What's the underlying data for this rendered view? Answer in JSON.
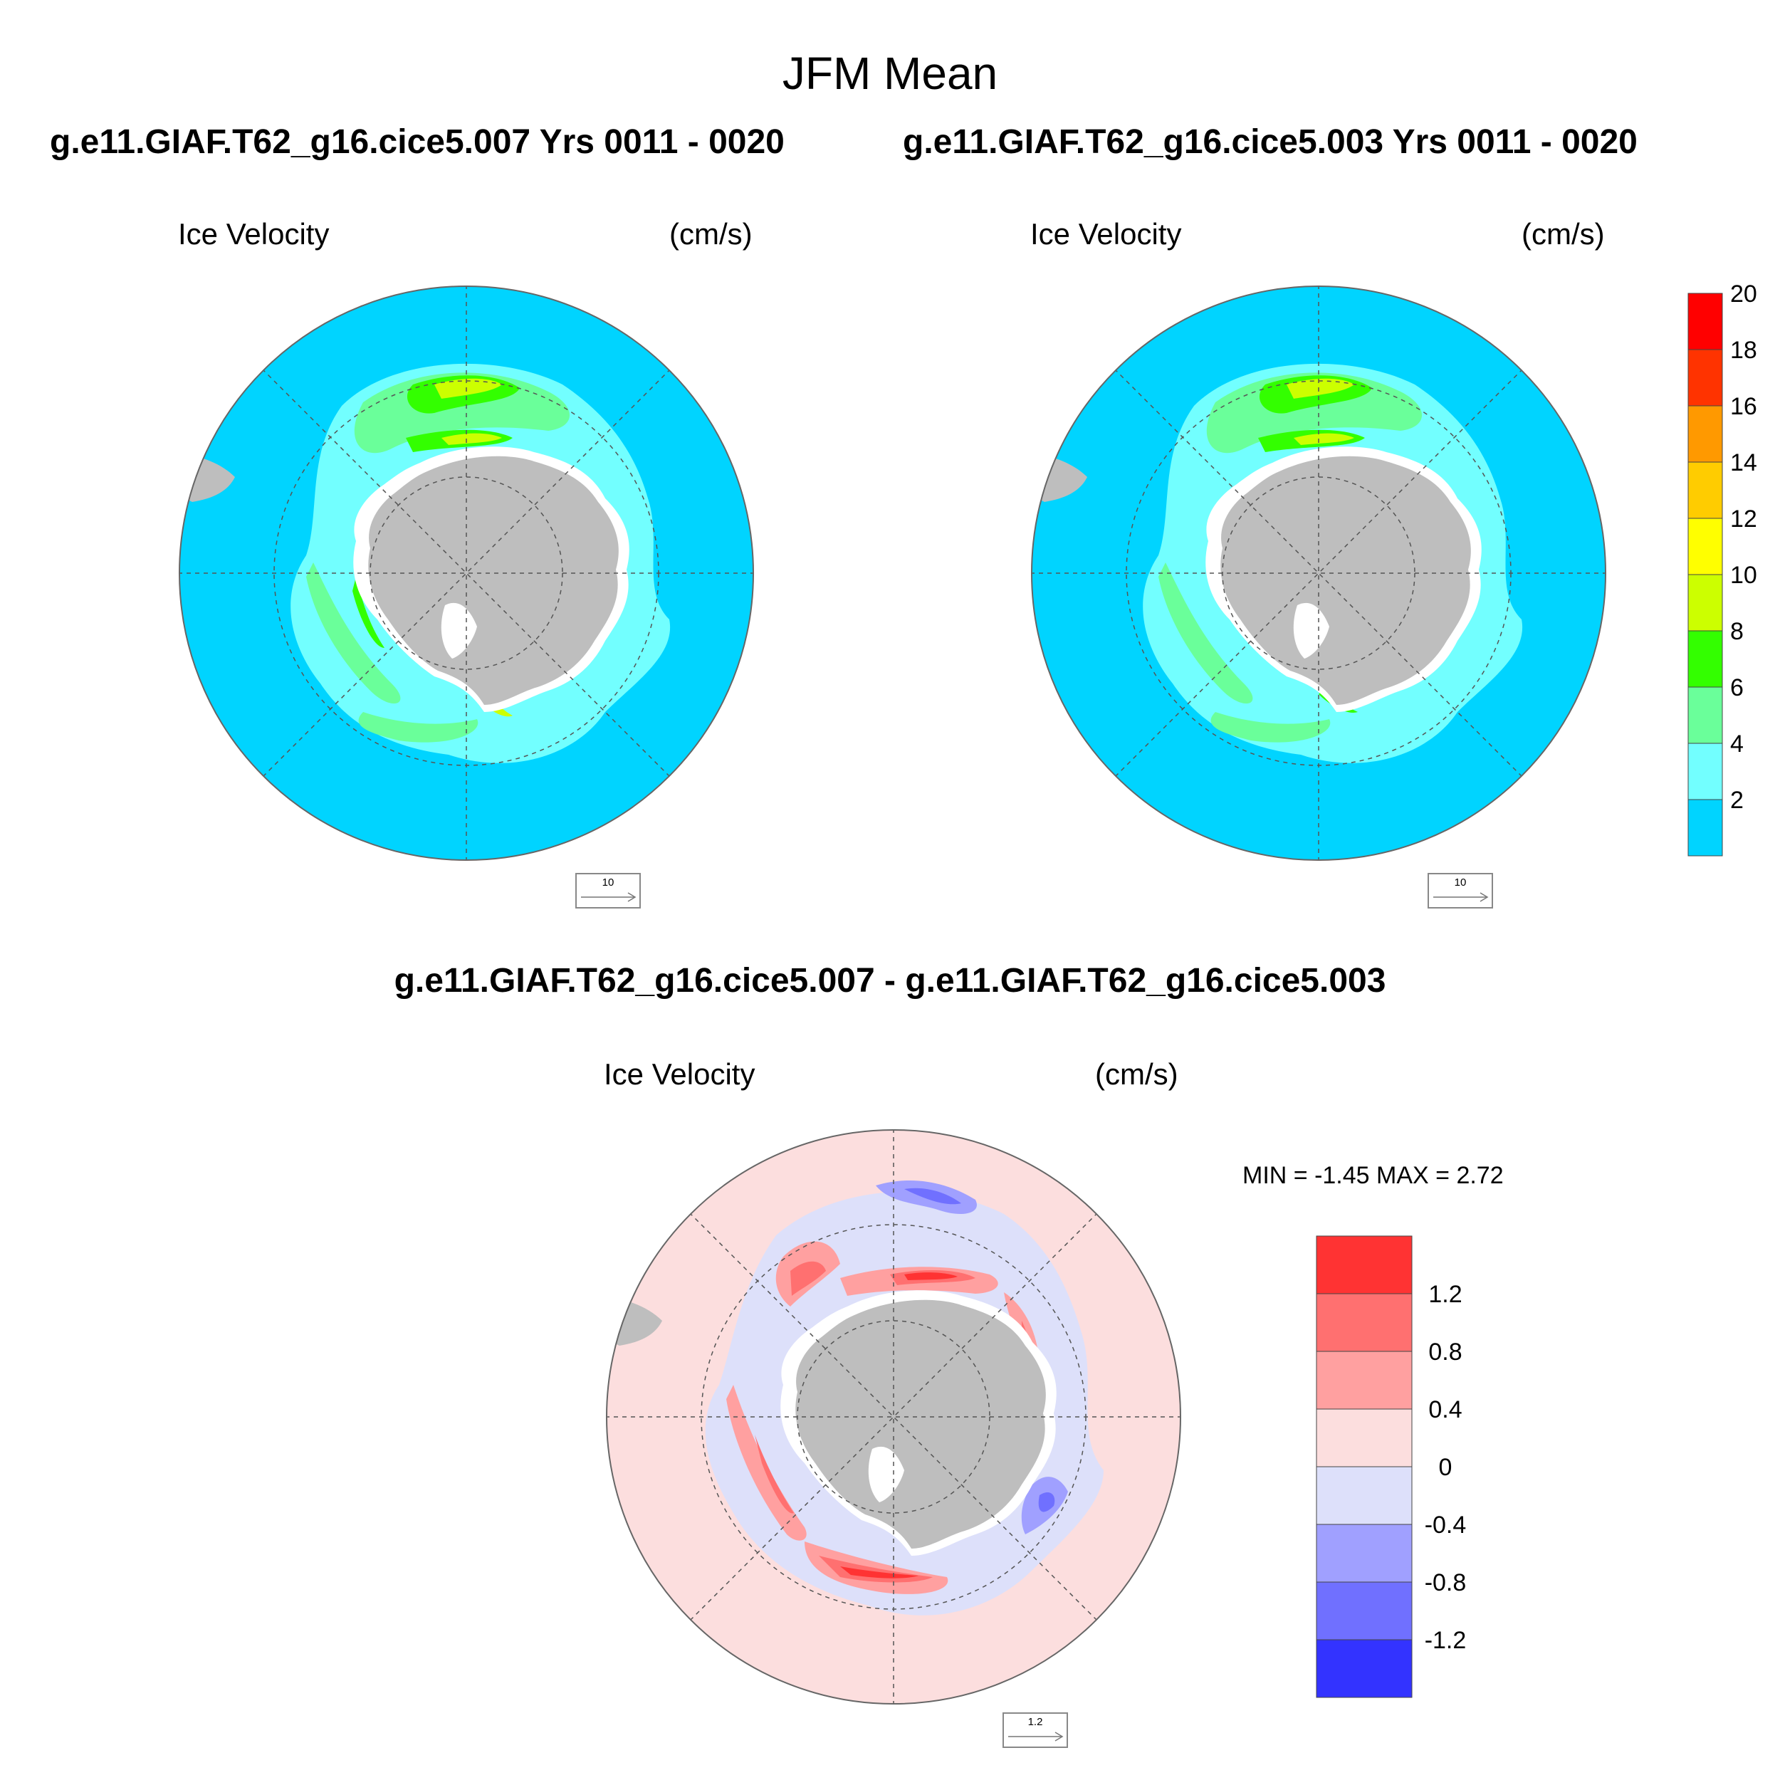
{
  "title": "JFM Mean",
  "panels": [
    {
      "id": "top-left",
      "run_title": "g.e11.GIAF.T62_g16.cice5.007  Yrs 0011 - 0020",
      "variable": "Ice Velocity",
      "units": "(cm/s)",
      "ref_vector": "10"
    },
    {
      "id": "top-right",
      "run_title": "g.e11.GIAF.T62_g16.cice5.003  Yrs 0011 - 0020",
      "variable": "Ice Velocity",
      "units": "(cm/s)",
      "ref_vector": "10"
    },
    {
      "id": "difference",
      "run_title": "g.e11.GIAF.T62_g16.cice5.007 - g.e11.GIAF.T62_g16.cice5.003",
      "variable": "Ice Velocity",
      "units": "(cm/s)",
      "ref_vector": "1.2",
      "min_max": "MIN =  -1.45 MAX =   2.72"
    }
  ],
  "colorbar_abs": {
    "labels": [
      "2",
      "4",
      "6",
      "8",
      "10",
      "12",
      "14",
      "16",
      "18",
      "20"
    ],
    "colors": [
      "#00d4ff",
      "#72ffff",
      "#6aff9a",
      "#33ff00",
      "#ccff00",
      "#ffff00",
      "#ffcc00",
      "#ff9900",
      "#ff3300",
      "#ff0000"
    ]
  },
  "colorbar_diff": {
    "labels": [
      "1.2",
      "0.8",
      "0.4",
      "0",
      "-0.4",
      "-0.8",
      "-1.2"
    ],
    "colors": [
      "#ff3333",
      "#ff7070",
      "#ffa0a0",
      "#fcdede",
      "#dde0fa",
      "#a0a0ff",
      "#7070ff",
      "#3333ff"
    ]
  },
  "colors": {
    "ocean_abs": "#00d4ff",
    "ocean_diff": "#fcdede",
    "land": "#bebebe",
    "ice_shelf": "#ffffff"
  }
}
